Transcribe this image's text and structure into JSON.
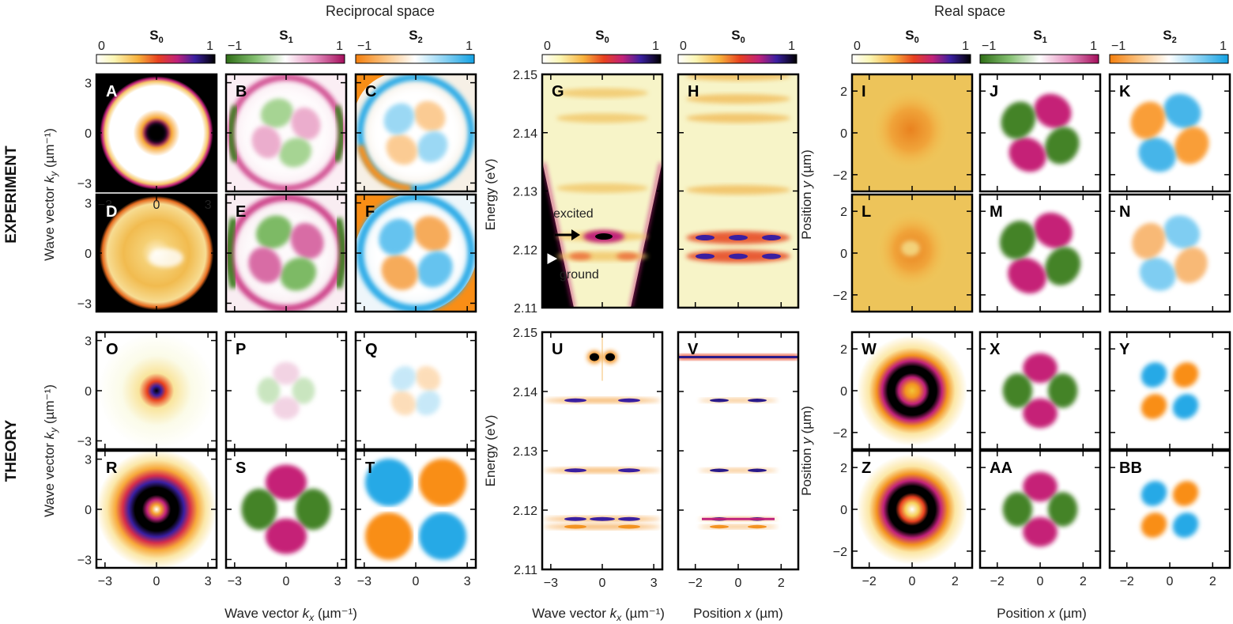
{
  "figure": {
    "headers": {
      "reciprocal": "Reciprocal space",
      "real": "Real space"
    },
    "row_labels": {
      "experiment": "EXPERIMENT",
      "theory": "THEORY"
    },
    "axis_labels": {
      "ky": "Wave vector k_y (µm⁻¹)",
      "kx": "Wave vector k_x (µm⁻¹)",
      "energy": "Energy (eV)",
      "x": "Position x (µm)",
      "y": "Position y (µm)"
    },
    "annotations": {
      "excited": "excited",
      "ground": "ground"
    },
    "colorbars": {
      "s0": {
        "label": "S0",
        "min": "0",
        "max": "1"
      },
      "s1": {
        "label": "S1",
        "min": "−1",
        "max": "1"
      },
      "s2": {
        "label": "S2",
        "min": "−1",
        "max": "1"
      }
    },
    "colors": {
      "s0_low": "#fdfde3",
      "s0_mid": "#f39321",
      "s0_high": "#000000",
      "s1_neg": "#3a7d1e",
      "s1_pos": "#c2166f",
      "s2_neg": "#f98e16",
      "s2_pos": "#25a9e6"
    }
  },
  "chart_data": [
    {
      "type": "heatmap",
      "panel": "A",
      "row": "EXPERIMENT",
      "quantity": "S0",
      "space": "reciprocal",
      "xlim": [
        -3.5,
        3.5
      ],
      "ylim": [
        -3.5,
        3.5
      ],
      "xticks": [
        -3,
        0,
        3
      ],
      "yticks": [
        -3,
        0,
        3
      ]
    },
    {
      "type": "heatmap",
      "panel": "B",
      "row": "EXPERIMENT",
      "quantity": "S1",
      "space": "reciprocal",
      "xlim": [
        -3.5,
        3.5
      ],
      "ylim": [
        -3.5,
        3.5
      ]
    },
    {
      "type": "heatmap",
      "panel": "C",
      "row": "EXPERIMENT",
      "quantity": "S2",
      "space": "reciprocal",
      "xlim": [
        -3.5,
        3.5
      ],
      "ylim": [
        -3.5,
        3.5
      ]
    },
    {
      "type": "heatmap",
      "panel": "D",
      "row": "EXPERIMENT",
      "quantity": "S0",
      "space": "reciprocal",
      "xlim": [
        -3.5,
        3.5
      ],
      "ylim": [
        -3.5,
        3.5
      ],
      "yticks": [
        -3,
        0,
        3
      ]
    },
    {
      "type": "heatmap",
      "panel": "E",
      "row": "EXPERIMENT",
      "quantity": "S1",
      "space": "reciprocal",
      "xlim": [
        -3.5,
        3.5
      ],
      "ylim": [
        -3.5,
        3.5
      ]
    },
    {
      "type": "heatmap",
      "panel": "F",
      "row": "EXPERIMENT",
      "quantity": "S2",
      "space": "reciprocal",
      "xlim": [
        -3.5,
        3.5
      ],
      "ylim": [
        -3.5,
        3.5
      ]
    },
    {
      "type": "heatmap",
      "panel": "G",
      "row": "EXPERIMENT",
      "quantity": "S0",
      "space": "dispersion",
      "xlim": [
        -3.5,
        3.5
      ],
      "ylim": [
        2.11,
        2.15
      ],
      "yticks": [
        2.11,
        2.12,
        2.13,
        2.14,
        2.15
      ],
      "lines": [
        {
          "label": "excited",
          "energy": 2.1222
        },
        {
          "label": "ground",
          "energy": 2.1188
        },
        {
          "energy": 2.1305
        },
        {
          "energy": 2.1425
        },
        {
          "energy": 2.1468
        }
      ]
    },
    {
      "type": "heatmap",
      "panel": "H",
      "row": "EXPERIMENT",
      "quantity": "S0",
      "space": "real-space spectrum",
      "xlim": [
        -2.8,
        2.8
      ],
      "ylim": [
        2.11,
        2.15
      ],
      "lines": [
        {
          "energy": 2.122
        },
        {
          "energy": 2.1188
        },
        {
          "energy": 2.1302
        },
        {
          "energy": 2.1425
        },
        {
          "energy": 2.1458
        },
        {
          "energy": 2.1497
        }
      ]
    },
    {
      "type": "heatmap",
      "panel": "I",
      "row": "EXPERIMENT",
      "quantity": "S0",
      "space": "real",
      "xlim": [
        -2.8,
        2.8
      ],
      "ylim": [
        -2.8,
        2.8
      ],
      "yticks": [
        -2,
        0,
        2
      ]
    },
    {
      "type": "heatmap",
      "panel": "J",
      "row": "EXPERIMENT",
      "quantity": "S1",
      "space": "real",
      "xlim": [
        -2.8,
        2.8
      ],
      "ylim": [
        -2.8,
        2.8
      ]
    },
    {
      "type": "heatmap",
      "panel": "K",
      "row": "EXPERIMENT",
      "quantity": "S2",
      "space": "real",
      "xlim": [
        -2.8,
        2.8
      ],
      "ylim": [
        -2.8,
        2.8
      ]
    },
    {
      "type": "heatmap",
      "panel": "L",
      "row": "EXPERIMENT",
      "quantity": "S0",
      "space": "real",
      "xlim": [
        -2.8,
        2.8
      ],
      "ylim": [
        -2.8,
        2.8
      ],
      "yticks": [
        -2,
        0,
        2
      ]
    },
    {
      "type": "heatmap",
      "panel": "M",
      "row": "EXPERIMENT",
      "quantity": "S1",
      "space": "real",
      "xlim": [
        -2.8,
        2.8
      ],
      "ylim": [
        -2.8,
        2.8
      ]
    },
    {
      "type": "heatmap",
      "panel": "N",
      "row": "EXPERIMENT",
      "quantity": "S2",
      "space": "real",
      "xlim": [
        -2.8,
        2.8
      ],
      "ylim": [
        -2.8,
        2.8
      ]
    },
    {
      "type": "heatmap",
      "panel": "O",
      "row": "THEORY",
      "quantity": "S0",
      "space": "reciprocal",
      "xlim": [
        -3.5,
        3.5
      ],
      "ylim": [
        -3.5,
        3.5
      ],
      "yticks": [
        -3,
        0,
        3
      ]
    },
    {
      "type": "heatmap",
      "panel": "P",
      "row": "THEORY",
      "quantity": "S1",
      "space": "reciprocal",
      "xlim": [
        -3.5,
        3.5
      ],
      "ylim": [
        -3.5,
        3.5
      ]
    },
    {
      "type": "heatmap",
      "panel": "Q",
      "row": "THEORY",
      "quantity": "S2",
      "space": "reciprocal",
      "xlim": [
        -3.5,
        3.5
      ],
      "ylim": [
        -3.5,
        3.5
      ]
    },
    {
      "type": "heatmap",
      "panel": "R",
      "row": "THEORY",
      "quantity": "S0",
      "space": "reciprocal",
      "xlim": [
        -3.5,
        3.5
      ],
      "ylim": [
        -3.5,
        3.5
      ],
      "xticks": [
        -3,
        0,
        3
      ],
      "yticks": [
        -3,
        0,
        3
      ]
    },
    {
      "type": "heatmap",
      "panel": "S",
      "row": "THEORY",
      "quantity": "S1",
      "space": "reciprocal",
      "xlim": [
        -3.5,
        3.5
      ],
      "ylim": [
        -3.5,
        3.5
      ],
      "xticks": [
        -3,
        0,
        3
      ]
    },
    {
      "type": "heatmap",
      "panel": "T",
      "row": "THEORY",
      "quantity": "S2",
      "space": "reciprocal",
      "xlim": [
        -3.5,
        3.5
      ],
      "ylim": [
        -3.5,
        3.5
      ],
      "xticks": [
        -3,
        0,
        3
      ]
    },
    {
      "type": "heatmap",
      "panel": "U",
      "row": "THEORY",
      "quantity": "S0",
      "space": "dispersion",
      "xlim": [
        -3.5,
        3.5
      ],
      "ylim": [
        2.11,
        2.15
      ],
      "xticks": [
        -3,
        0,
        3
      ],
      "yticks": [
        2.11,
        2.12,
        2.13,
        2.14,
        2.15
      ],
      "lines": [
        {
          "energy": 2.1185
        },
        {
          "energy": 2.1172
        },
        {
          "energy": 2.1267
        },
        {
          "energy": 2.1385
        },
        {
          "energy": 2.1458
        }
      ]
    },
    {
      "type": "heatmap",
      "panel": "V",
      "row": "THEORY",
      "quantity": "S0",
      "space": "real-space spectrum",
      "xlim": [
        -2.8,
        2.8
      ],
      "ylim": [
        2.11,
        2.15
      ],
      "xticks": [
        -2,
        0,
        2
      ],
      "lines": [
        {
          "energy": 2.1185
        },
        {
          "energy": 2.1172
        },
        {
          "energy": 2.1267
        },
        {
          "energy": 2.1385
        },
        {
          "energy": 2.1458
        }
      ]
    },
    {
      "type": "heatmap",
      "panel": "W",
      "row": "THEORY",
      "quantity": "S0",
      "space": "real",
      "xlim": [
        -2.8,
        2.8
      ],
      "ylim": [
        -2.8,
        2.8
      ],
      "yticks": [
        -2,
        0,
        2
      ]
    },
    {
      "type": "heatmap",
      "panel": "X",
      "row": "THEORY",
      "quantity": "S1",
      "space": "real",
      "xlim": [
        -2.8,
        2.8
      ],
      "ylim": [
        -2.8,
        2.8
      ]
    },
    {
      "type": "heatmap",
      "panel": "Y",
      "row": "THEORY",
      "quantity": "S2",
      "space": "real",
      "xlim": [
        -2.8,
        2.8
      ],
      "ylim": [
        -2.8,
        2.8
      ]
    },
    {
      "type": "heatmap",
      "panel": "Z",
      "row": "THEORY",
      "quantity": "S0",
      "space": "real",
      "xlim": [
        -2.8,
        2.8
      ],
      "ylim": [
        -2.8,
        2.8
      ],
      "xticks": [
        -2,
        0,
        2
      ],
      "yticks": [
        -2,
        0,
        2
      ]
    },
    {
      "type": "heatmap",
      "panel": "AA",
      "row": "THEORY",
      "quantity": "S1",
      "space": "real",
      "xlim": [
        -2.8,
        2.8
      ],
      "ylim": [
        -2.8,
        2.8
      ],
      "xticks": [
        -2,
        0,
        2
      ]
    },
    {
      "type": "heatmap",
      "panel": "BB",
      "row": "THEORY",
      "quantity": "S2",
      "space": "real",
      "xlim": [
        -2.8,
        2.8
      ],
      "ylim": [
        -2.8,
        2.8
      ],
      "xticks": [
        -2,
        0,
        2
      ]
    }
  ]
}
